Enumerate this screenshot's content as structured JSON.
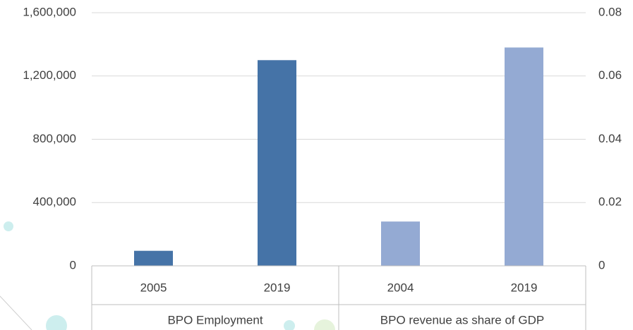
{
  "chart_data": {
    "type": "bar",
    "categories": [
      "2005",
      "2019",
      "2004",
      "2019"
    ],
    "groups": [
      {
        "label": "BPO Employment",
        "span": [
          0,
          1
        ]
      },
      {
        "label": "BPO revenue as share of GDP",
        "span": [
          2,
          3
        ]
      }
    ],
    "series": [
      {
        "color": "#4573a7",
        "values": [
          95000,
          1300000,
          null,
          null
        ]
      },
      {
        "color": "#94aad3",
        "axis": "y2",
        "values": [
          null,
          null,
          0.014,
          0.069
        ]
      }
    ],
    "ylim": [
      0,
      1600000
    ],
    "yticks": [
      0,
      {
        "value": 400000,
        "label": "400,000"
      },
      {
        "value": 800000,
        "label": "800,000"
      },
      {
        "value": 1200000,
        "label": "1,200,000"
      },
      {
        "value": 1600000,
        "label": "1,600,000"
      }
    ],
    "y2lim": [
      0,
      0.08
    ],
    "y2ticks": [
      0,
      0.02,
      0.04,
      0.06,
      0.08
    ],
    "grid": true
  }
}
